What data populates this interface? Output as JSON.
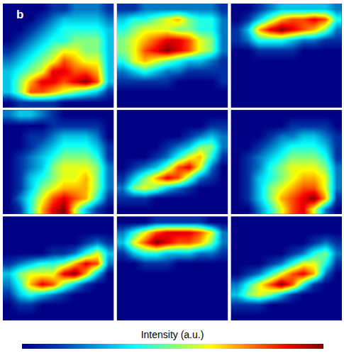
{
  "chart_data": {
    "type": "heatmap",
    "label": "b",
    "colorbar_title": "Intensity (a.u.)",
    "zlim": [
      0,
      10
    ],
    "tick_labels": false,
    "panels": [
      {
        "cells": [
          [
            0,
            0,
            0,
            0,
            1,
            1,
            2,
            2,
            2,
            1
          ],
          [
            0,
            0,
            0,
            1,
            2,
            3,
            3,
            3,
            3,
            2
          ],
          [
            0,
            0,
            1,
            2,
            3,
            4,
            4,
            4,
            4,
            3
          ],
          [
            0,
            1,
            2,
            3,
            4,
            4,
            5,
            5,
            5,
            3
          ],
          [
            1,
            2,
            3,
            4,
            5,
            6,
            6,
            5,
            5,
            3
          ],
          [
            2,
            3,
            4,
            5,
            6,
            8,
            7,
            6,
            6,
            3
          ],
          [
            3,
            4,
            5,
            6,
            9,
            9,
            8,
            8,
            7,
            3
          ],
          [
            3,
            5,
            7,
            9,
            9,
            8,
            9,
            10,
            8,
            3
          ],
          [
            3,
            5,
            8,
            8,
            7,
            6,
            5,
            4,
            3,
            1
          ],
          [
            0,
            1,
            1,
            1,
            1,
            0,
            0,
            0,
            0,
            0
          ]
        ]
      },
      {
        "cells": [
          [
            1,
            1,
            2,
            2,
            2,
            2,
            2,
            2,
            2,
            1
          ],
          [
            3,
            4,
            4,
            5,
            6,
            7,
            5,
            4,
            4,
            2
          ],
          [
            4,
            5,
            6,
            6,
            6,
            5,
            5,
            4,
            4,
            2
          ],
          [
            5,
            6,
            7,
            8,
            9,
            9,
            8,
            6,
            5,
            2
          ],
          [
            5,
            6,
            8,
            9,
            10,
            9,
            8,
            6,
            5,
            2
          ],
          [
            4,
            6,
            7,
            6,
            5,
            4,
            3,
            3,
            2,
            1
          ],
          [
            2,
            3,
            4,
            3,
            2,
            2,
            1,
            1,
            1,
            1
          ],
          [
            1,
            1,
            1,
            1,
            1,
            0,
            0,
            0,
            0,
            1
          ],
          [
            0,
            0,
            0,
            0,
            0,
            0,
            0,
            0,
            0,
            0
          ],
          [
            0,
            0,
            0,
            0,
            0,
            0,
            0,
            0,
            0,
            0
          ]
        ]
      },
      {
        "cells": [
          [
            0,
            0,
            1,
            2,
            3,
            3,
            3,
            3,
            3,
            2
          ],
          [
            0,
            1,
            3,
            5,
            7,
            8,
            8,
            9,
            8,
            4
          ],
          [
            1,
            3,
            7,
            9,
            10,
            9,
            8,
            7,
            5,
            2
          ],
          [
            1,
            2,
            4,
            4,
            4,
            3,
            2,
            2,
            1,
            1
          ],
          [
            0,
            0,
            1,
            1,
            1,
            1,
            0,
            0,
            0,
            0
          ],
          [
            0,
            0,
            0,
            0,
            0,
            0,
            0,
            0,
            0,
            0
          ],
          [
            0,
            0,
            0,
            0,
            0,
            0,
            0,
            0,
            0,
            0
          ],
          [
            0,
            0,
            0,
            0,
            0,
            0,
            0,
            0,
            0,
            0
          ],
          [
            0,
            0,
            0,
            0,
            0,
            0,
            0,
            0,
            0,
            0
          ],
          [
            0,
            0,
            0,
            0,
            0,
            0,
            0,
            0,
            0,
            0
          ]
        ]
      },
      {
        "cells": [
          [
            2,
            3,
            3,
            2,
            1,
            0,
            0,
            0,
            0,
            0
          ],
          [
            0,
            0,
            0,
            0,
            1,
            1,
            1,
            1,
            1,
            0
          ],
          [
            0,
            0,
            1,
            1,
            2,
            3,
            3,
            3,
            2,
            0
          ],
          [
            0,
            0,
            1,
            2,
            3,
            4,
            4,
            4,
            3,
            1
          ],
          [
            0,
            1,
            2,
            3,
            4,
            5,
            5,
            5,
            4,
            1
          ],
          [
            0,
            1,
            2,
            3,
            5,
            6,
            6,
            6,
            5,
            2
          ],
          [
            0,
            1,
            3,
            4,
            5,
            6,
            6,
            7,
            5,
            2
          ],
          [
            0,
            1,
            3,
            5,
            6,
            7,
            7,
            7,
            5,
            2
          ],
          [
            0,
            2,
            4,
            6,
            8,
            9,
            8,
            7,
            4,
            1
          ],
          [
            0,
            1,
            4,
            7,
            9,
            10,
            6,
            3,
            1,
            0
          ]
        ]
      },
      {
        "cells": [
          [
            0,
            0,
            0,
            0,
            0,
            0,
            0,
            0,
            0,
            0
          ],
          [
            0,
            0,
            0,
            0,
            0,
            0,
            0,
            0,
            1,
            1
          ],
          [
            0,
            0,
            0,
            0,
            0,
            0,
            1,
            2,
            3,
            2
          ],
          [
            0,
            0,
            0,
            0,
            1,
            2,
            3,
            5,
            5,
            2
          ],
          [
            0,
            0,
            0,
            1,
            2,
            4,
            6,
            7,
            4,
            1
          ],
          [
            0,
            1,
            2,
            3,
            5,
            8,
            9,
            6,
            2,
            0
          ],
          [
            1,
            3,
            5,
            7,
            9,
            8,
            5,
            2,
            1,
            0
          ],
          [
            2,
            5,
            6,
            5,
            3,
            2,
            1,
            0,
            0,
            0
          ],
          [
            1,
            1,
            1,
            0,
            0,
            0,
            0,
            0,
            0,
            0
          ],
          [
            0,
            0,
            0,
            0,
            0,
            0,
            0,
            0,
            0,
            0
          ]
        ]
      },
      {
        "cells": [
          [
            0,
            0,
            0,
            0,
            0,
            0,
            0,
            0,
            0,
            0
          ],
          [
            0,
            0,
            0,
            0,
            0,
            1,
            1,
            1,
            1,
            0
          ],
          [
            0,
            0,
            0,
            1,
            2,
            2,
            3,
            3,
            2,
            1
          ],
          [
            0,
            0,
            1,
            2,
            3,
            4,
            4,
            4,
            3,
            1
          ],
          [
            0,
            1,
            2,
            3,
            4,
            5,
            5,
            5,
            4,
            1
          ],
          [
            0,
            1,
            2,
            4,
            5,
            6,
            6,
            6,
            5,
            2
          ],
          [
            0,
            1,
            3,
            4,
            5,
            6,
            7,
            7,
            6,
            2
          ],
          [
            0,
            1,
            3,
            5,
            6,
            7,
            8,
            8,
            6,
            2
          ],
          [
            0,
            1,
            3,
            5,
            7,
            8,
            9,
            10,
            7,
            1
          ],
          [
            0,
            0,
            2,
            4,
            6,
            8,
            9,
            6,
            2,
            0
          ]
        ]
      },
      {
        "cells": [
          [
            0,
            0,
            0,
            0,
            0,
            0,
            0,
            0,
            0,
            0
          ],
          [
            0,
            0,
            0,
            0,
            0,
            0,
            0,
            0,
            0,
            0
          ],
          [
            0,
            0,
            0,
            0,
            0,
            0,
            0,
            1,
            2,
            1
          ],
          [
            0,
            0,
            0,
            0,
            1,
            1,
            2,
            4,
            6,
            3
          ],
          [
            1,
            2,
            3,
            4,
            4,
            5,
            7,
            9,
            8,
            2
          ],
          [
            3,
            5,
            6,
            6,
            6,
            9,
            10,
            7,
            3,
            0
          ],
          [
            2,
            4,
            7,
            9,
            8,
            5,
            3,
            1,
            0,
            0
          ],
          [
            1,
            3,
            4,
            3,
            2,
            1,
            0,
            0,
            0,
            0
          ],
          [
            0,
            1,
            1,
            0,
            0,
            0,
            0,
            0,
            0,
            0
          ],
          [
            0,
            0,
            0,
            0,
            0,
            0,
            0,
            0,
            0,
            0
          ]
        ]
      },
      {
        "cells": [
          [
            0,
            0,
            0,
            1,
            1,
            1,
            1,
            1,
            0,
            0
          ],
          [
            2,
            4,
            6,
            8,
            9,
            9,
            9,
            8,
            6,
            2
          ],
          [
            3,
            6,
            8,
            10,
            9,
            8,
            8,
            7,
            5,
            2
          ],
          [
            1,
            3,
            4,
            4,
            3,
            3,
            3,
            2,
            2,
            1
          ],
          [
            0,
            0,
            1,
            1,
            1,
            0,
            0,
            0,
            0,
            0
          ],
          [
            0,
            0,
            0,
            0,
            0,
            0,
            0,
            0,
            0,
            0
          ],
          [
            0,
            0,
            0,
            0,
            0,
            0,
            0,
            0,
            0,
            0
          ],
          [
            0,
            0,
            0,
            0,
            0,
            0,
            0,
            0,
            0,
            0
          ],
          [
            0,
            0,
            0,
            0,
            0,
            0,
            0,
            0,
            0,
            0
          ],
          [
            0,
            0,
            0,
            0,
            0,
            0,
            0,
            0,
            0,
            0
          ]
        ]
      },
      {
        "cells": [
          [
            0,
            0,
            0,
            0,
            0,
            0,
            0,
            0,
            0,
            0
          ],
          [
            0,
            0,
            0,
            0,
            0,
            0,
            0,
            0,
            0,
            0
          ],
          [
            0,
            0,
            0,
            0,
            0,
            0,
            0,
            1,
            2,
            1
          ],
          [
            0,
            0,
            0,
            0,
            0,
            1,
            2,
            4,
            5,
            2
          ],
          [
            0,
            0,
            0,
            1,
            2,
            4,
            6,
            6,
            4,
            1
          ],
          [
            0,
            1,
            2,
            4,
            6,
            8,
            9,
            7,
            2,
            0
          ],
          [
            2,
            4,
            6,
            8,
            10,
            8,
            4,
            1,
            0,
            0
          ],
          [
            3,
            5,
            6,
            5,
            3,
            1,
            0,
            0,
            0,
            0
          ],
          [
            1,
            1,
            1,
            0,
            0,
            0,
            0,
            0,
            0,
            0
          ],
          [
            0,
            0,
            0,
            0,
            0,
            0,
            0,
            0,
            0,
            0
          ]
        ]
      }
    ]
  }
}
